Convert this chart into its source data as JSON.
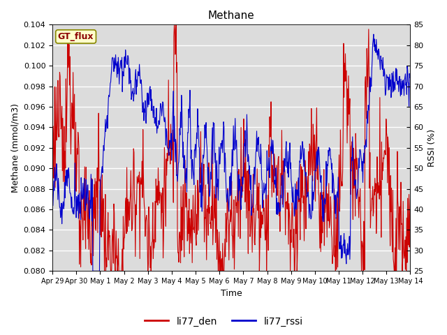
{
  "title": "Methane",
  "ylabel_left": "Methane (mmol/m3)",
  "ylabel_right": "RSSI (%)",
  "xlabel": "Time",
  "ylim_left": [
    0.08,
    0.104
  ],
  "ylim_right": [
    25,
    85
  ],
  "yticks_left": [
    0.08,
    0.082,
    0.084,
    0.086,
    0.088,
    0.09,
    0.092,
    0.094,
    0.096,
    0.098,
    0.1,
    0.102,
    0.104
  ],
  "yticks_right": [
    25,
    30,
    35,
    40,
    45,
    50,
    55,
    60,
    65,
    70,
    75,
    80,
    85
  ],
  "xtick_labels": [
    "Apr 29",
    "Apr 30",
    "May 1",
    "May 2",
    "May 3",
    "May 4",
    "May 5",
    "May 6",
    "May 7",
    "May 8",
    "May 9",
    "May 10",
    "May 11",
    "May 12",
    "May 13",
    "May 14"
  ],
  "color_red": "#CC0000",
  "color_blue": "#0000CC",
  "legend_red": "li77_den",
  "legend_blue": "li77_rssi",
  "gt_flux_label": "GT_flux",
  "gt_flux_bg": "#FFFFCC",
  "gt_flux_edge": "#888800",
  "background_color": "#DCDCDC",
  "grid_color": "#FFFFFF",
  "linewidth": 0.8
}
